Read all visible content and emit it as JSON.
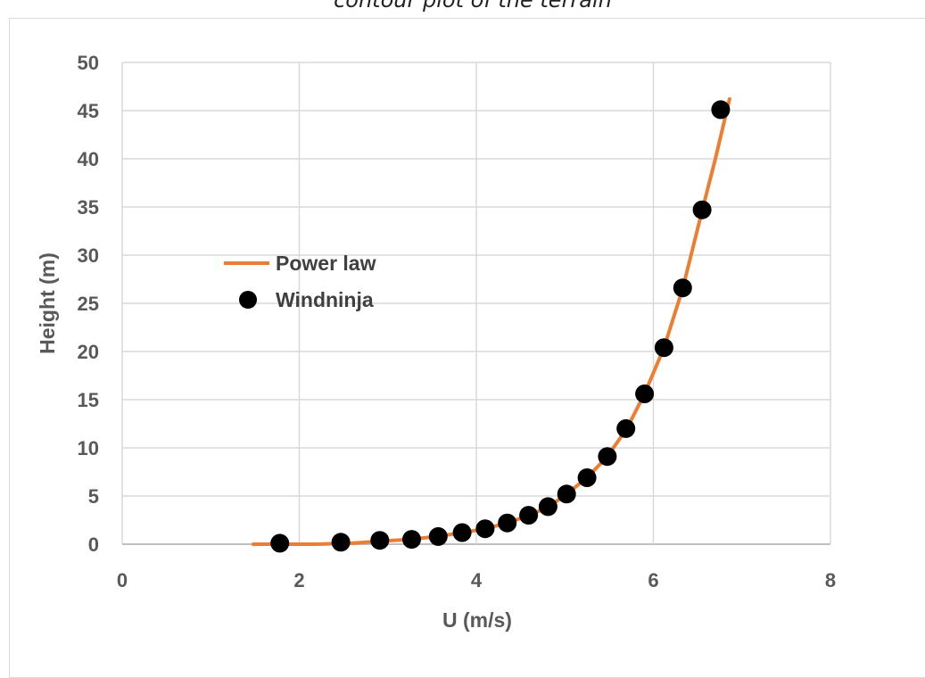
{
  "caption_fragment": "contour plot of the terrain",
  "chart_data": {
    "type": "scatter",
    "title": "",
    "xlabel": "U (m/s)",
    "ylabel": "Height (m)",
    "xlim": [
      0,
      8
    ],
    "ylim": [
      0,
      50
    ],
    "xticks": [
      0,
      2,
      4,
      6,
      8
    ],
    "yticks": [
      0,
      5,
      10,
      15,
      20,
      25,
      30,
      35,
      40,
      45,
      50
    ],
    "grid": true,
    "legend_position": "center-left",
    "series": [
      {
        "name": "Power law",
        "kind": "line",
        "color": "#ed7d31",
        "x": [
          1.48,
          2.2,
          2.6,
          2.9,
          3.25,
          3.55,
          3.85,
          4.1,
          4.35,
          4.6,
          4.82,
          5.02,
          5.25,
          5.48,
          5.7,
          5.9,
          6.12,
          6.33,
          6.55,
          6.7,
          6.86
        ],
        "y": [
          0,
          0,
          0.1,
          0.3,
          0.5,
          0.8,
          1.2,
          1.6,
          2.2,
          3.0,
          3.9,
          5.2,
          6.9,
          9.1,
          12.0,
          15.6,
          20.4,
          26.5,
          34.6,
          40.0,
          46.2
        ]
      },
      {
        "name": "Windninja",
        "kind": "markers",
        "color": "#000000",
        "x": [
          1.78,
          2.47,
          2.91,
          3.27,
          3.57,
          3.84,
          4.1,
          4.35,
          4.59,
          4.81,
          5.02,
          5.25,
          5.48,
          5.69,
          5.9,
          6.12,
          6.33,
          6.55,
          6.76
        ],
        "y": [
          0.1,
          0.2,
          0.4,
          0.5,
          0.8,
          1.2,
          1.6,
          2.2,
          3.0,
          3.9,
          5.2,
          6.9,
          9.1,
          12.0,
          15.6,
          20.4,
          26.6,
          34.7,
          45.1
        ]
      }
    ]
  }
}
